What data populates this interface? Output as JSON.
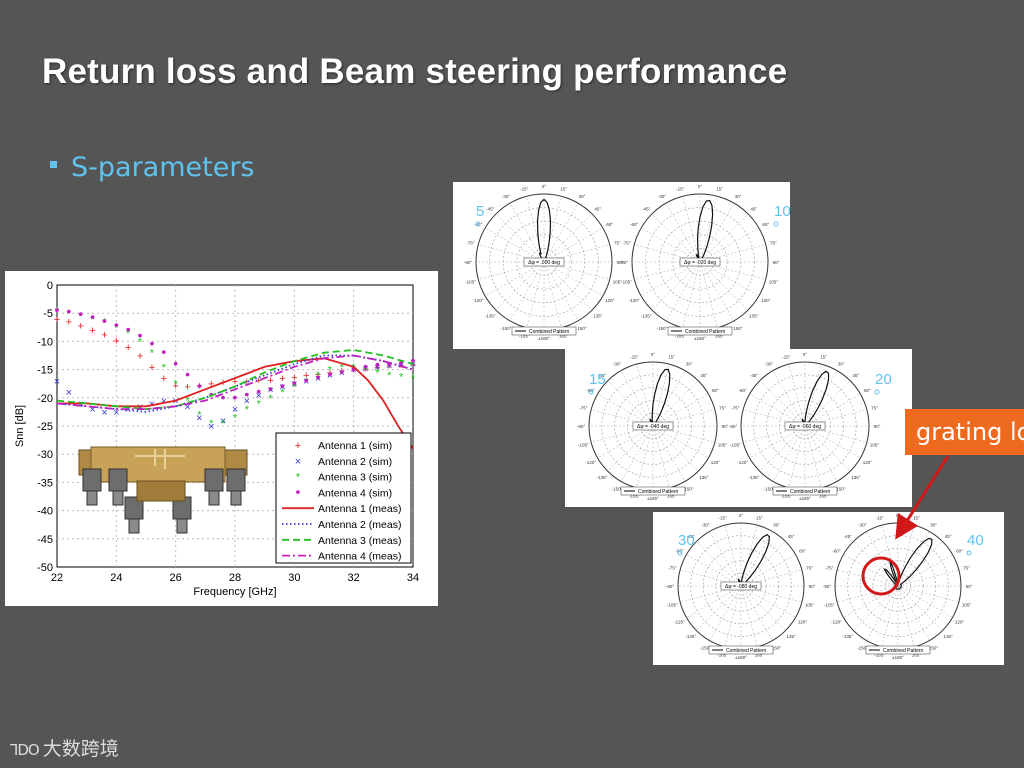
{
  "slide": {
    "title": "Return loss and Beam steering performance",
    "bullet": "S-parameters",
    "callout": "grating lobe",
    "logo_mark": "ꓶDO",
    "logo_text": "大数跨境"
  },
  "chart_data": [
    {
      "type": "scatter",
      "xlabel": "Frequency [GHz]",
      "ylabel": "Snn [dB]",
      "xlim": [
        22,
        34
      ],
      "ylim": [
        -50,
        0
      ],
      "xticks": [
        22,
        24,
        26,
        28,
        30,
        32,
        34
      ],
      "yticks": [
        0,
        -5,
        -10,
        -15,
        -20,
        -25,
        -30,
        -35,
        -40,
        -45,
        -50
      ],
      "grid": true,
      "legend_position": "bottom-right",
      "series": [
        {
          "name": "Antenna 1 (sim)",
          "marker": "+",
          "color": "#e02020",
          "x": [
            22,
            22.4,
            22.8,
            23.2,
            23.6,
            24,
            24.4,
            24.8,
            25.2,
            25.6,
            26,
            26.4,
            26.8,
            27.2,
            27.6,
            28,
            28.4,
            28.8,
            29.2,
            29.6,
            30,
            30.4,
            30.8,
            31.2,
            31.6,
            32,
            32.4,
            32.8,
            33.2,
            33.6,
            34
          ],
          "y": [
            -6,
            -6.5,
            -7.2,
            -8,
            -8.8,
            -9.8,
            -11,
            -12.5,
            -14.5,
            -16.5,
            -17.8,
            -18,
            -17.8,
            -17.5,
            -17.2,
            -17,
            -17,
            -16.8,
            -16.8,
            -16.5,
            -16.3,
            -16,
            -15.8,
            -15.5,
            -15.2,
            -15,
            -14.8,
            -14.5,
            -14.3,
            -14.2,
            -14
          ]
        },
        {
          "name": "Antenna 2 (sim)",
          "marker": "x",
          "color": "#3a3ad8",
          "x": [
            22,
            22.4,
            22.8,
            23.2,
            23.6,
            24,
            24.4,
            24.8,
            25.2,
            25.6,
            26,
            26.4,
            26.8,
            27.2,
            27.6,
            28,
            28.4,
            28.8,
            29.2,
            29.6,
            30,
            30.4,
            30.8,
            31.2,
            31.6,
            32,
            32.4,
            32.8,
            33.2,
            33.6,
            34
          ],
          "y": [
            -17,
            -19,
            -21,
            -22,
            -22.5,
            -22.5,
            -22,
            -21.5,
            -21,
            -20.5,
            -20.5,
            -21.5,
            -23.5,
            -25,
            -24,
            -22,
            -20.5,
            -19.5,
            -18.5,
            -18,
            -17.5,
            -17,
            -16.5,
            -16,
            -15.5,
            -15,
            -14.8,
            -14.5,
            -14.3,
            -14.2,
            -14
          ]
        },
        {
          "name": "Antenna 3 (sim)",
          "marker": "*",
          "color": "#20c020",
          "x": [
            22,
            22.4,
            22.8,
            23.2,
            23.6,
            24,
            24.4,
            24.8,
            25.2,
            25.6,
            26,
            26.4,
            26.8,
            27.2,
            27.6,
            28,
            28.4,
            28.8,
            29.2,
            29.6,
            30,
            30.4,
            30.8,
            31.2,
            31.6,
            32,
            32.4,
            32.8,
            33.2,
            33.6,
            34
          ],
          "y": [
            -4.5,
            -5,
            -5.5,
            -6,
            -6.5,
            -7.5,
            -8.5,
            -10,
            -12,
            -14.5,
            -17.5,
            -20.5,
            -23,
            -24.5,
            -24.5,
            -23.5,
            -22,
            -21,
            -20,
            -19,
            -18,
            -17,
            -16,
            -15,
            -14.5,
            -14.5,
            -15,
            -15.5,
            -16,
            -16.2,
            -16.5
          ]
        },
        {
          "name": "Antenna 4 (sim)",
          "marker": "•",
          "color": "#c020c0",
          "x": [
            22,
            22.4,
            22.8,
            23.2,
            23.6,
            24,
            24.4,
            24.8,
            25.2,
            25.6,
            26,
            26.4,
            26.8,
            27.2,
            27.6,
            28,
            28.4,
            28.8,
            29.2,
            29.6,
            30,
            30.4,
            30.8,
            31.2,
            31.6,
            32,
            32.4,
            32.8,
            33.2,
            33.6,
            34
          ],
          "y": [
            -4.5,
            -4.8,
            -5.2,
            -5.8,
            -6.5,
            -7.2,
            -8,
            -9,
            -10.5,
            -12,
            -14,
            -16,
            -18,
            -19.5,
            -20,
            -20,
            -19.5,
            -19,
            -18.5,
            -18,
            -17.5,
            -17,
            -16.5,
            -16,
            -15.5,
            -15,
            -14.5,
            -14.2,
            -14,
            -13.8,
            -13.5
          ]
        },
        {
          "name": "Antenna 1 (meas)",
          "line": "solid",
          "color": "#e02020",
          "x": [
            22,
            23,
            24,
            25,
            26,
            27,
            28,
            29,
            30,
            31,
            32,
            32.5,
            33,
            33.5,
            34
          ],
          "y": [
            -21,
            -21,
            -21.5,
            -21.5,
            -20.5,
            -18.5,
            -16.5,
            -14.5,
            -13.5,
            -13,
            -14.5,
            -17,
            -20.5,
            -25,
            -29
          ]
        },
        {
          "name": "Antenna 2 (meas)",
          "line": "dotted",
          "color": "#3a3ad8",
          "x": [
            22,
            23,
            24,
            25,
            26,
            27,
            28,
            29,
            30,
            31,
            32,
            33,
            34
          ],
          "y": [
            -21,
            -21.5,
            -22,
            -22.5,
            -21.5,
            -20,
            -18,
            -16,
            -14,
            -12.5,
            -12.5,
            -13.5,
            -15
          ]
        },
        {
          "name": "Antenna 3 (meas)",
          "line": "dashed",
          "color": "#20c020",
          "x": [
            22,
            23,
            24,
            25,
            26,
            27,
            28,
            29,
            30,
            31,
            32,
            33,
            34
          ],
          "y": [
            -20.5,
            -21,
            -21.5,
            -22,
            -21.5,
            -20,
            -18,
            -15.5,
            -13.5,
            -12,
            -11.5,
            -12.5,
            -14
          ]
        },
        {
          "name": "Antenna 4 (meas)",
          "line": "dashdot",
          "color": "#c020c0",
          "x": [
            22,
            23,
            24,
            25,
            26,
            27,
            28,
            29,
            30,
            31,
            32,
            33,
            34
          ],
          "y": [
            -21,
            -21.5,
            -22,
            -22,
            -21.5,
            -20.5,
            -18.5,
            -16.5,
            -14.5,
            -13,
            -12.5,
            -13.5,
            -15
          ]
        }
      ]
    },
    {
      "type": "polar",
      "angle_ticks": [
        "0°",
        "15°",
        "30°",
        "45°",
        "60°",
        "75°",
        "90°",
        "105°",
        "120°",
        "135°",
        "150°",
        "165°",
        "±180°",
        "-165°",
        "-150°",
        "-135°",
        "-120°",
        "-105°",
        "-90°",
        "-75°",
        "-60°",
        "-45°",
        "-30°",
        "-15°"
      ],
      "legend": "Combined Pattern",
      "panels": [
        {
          "label": "5",
          "steer_text": "Δφ = .000 deg",
          "steer": 0
        },
        {
          "label": "10",
          "steer_text": "Δφ = -020 deg",
          "steer": 8
        },
        {
          "label": "15",
          "steer_text": "Δφ = -040 deg",
          "steer": 14
        },
        {
          "label": "20",
          "steer_text": "Δφ = -060 deg",
          "steer": 22
        },
        {
          "label": "30",
          "steer_text": "Δφ = -080 deg",
          "steer": 28
        },
        {
          "label": "40",
          "steer_text": "",
          "steer": 35,
          "grating_lobe": true
        }
      ]
    }
  ]
}
